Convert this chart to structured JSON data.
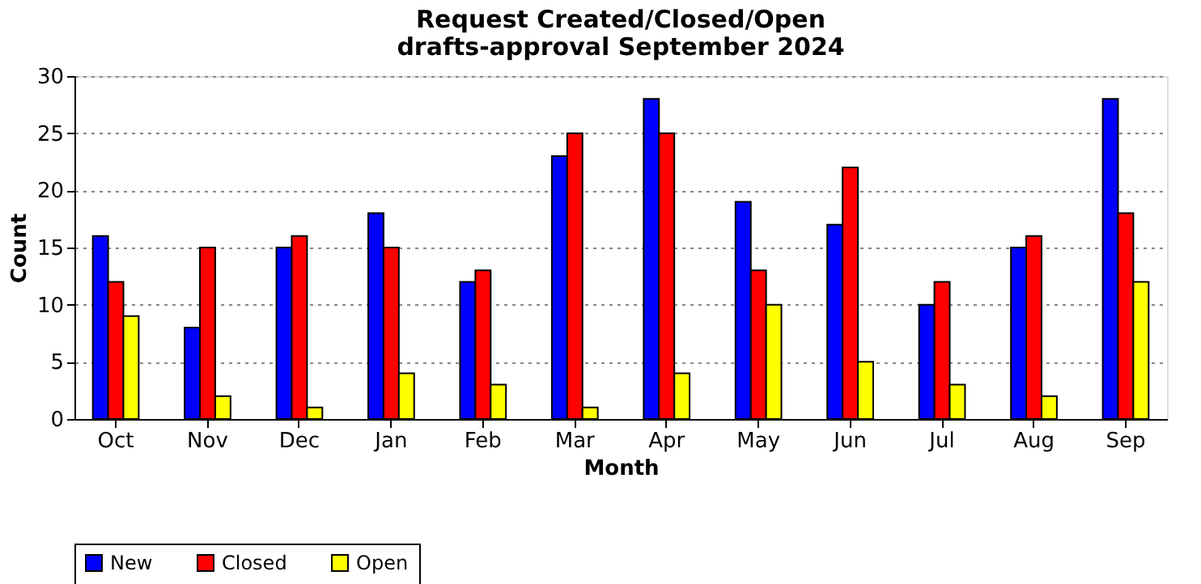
{
  "chart_data": {
    "type": "bar",
    "title": "Request Created/Closed/Open\ndrafts-approval September 2024",
    "xlabel": "Month",
    "ylabel": "Count",
    "categories": [
      "Oct",
      "Nov",
      "Dec",
      "Jan",
      "Feb",
      "Mar",
      "Apr",
      "May",
      "Jun",
      "Jul",
      "Aug",
      "Sep"
    ],
    "series": [
      {
        "name": "New",
        "color": "#0000ff",
        "values": [
          16,
          8,
          15,
          18,
          12,
          23,
          28,
          19,
          17,
          10,
          15,
          28
        ]
      },
      {
        "name": "Closed",
        "color": "#ff0000",
        "values": [
          12,
          15,
          16,
          15,
          13,
          25,
          25,
          13,
          22,
          12,
          16,
          18
        ]
      },
      {
        "name": "Open",
        "color": "#ffff00",
        "values": [
          9,
          2,
          1,
          4,
          3,
          1,
          4,
          10,
          5,
          3,
          2,
          12
        ]
      }
    ],
    "ylim": [
      0,
      30
    ],
    "yticks": [
      0,
      5,
      10,
      15,
      20,
      25,
      30
    ],
    "grid": "y",
    "legend": "bottom"
  }
}
